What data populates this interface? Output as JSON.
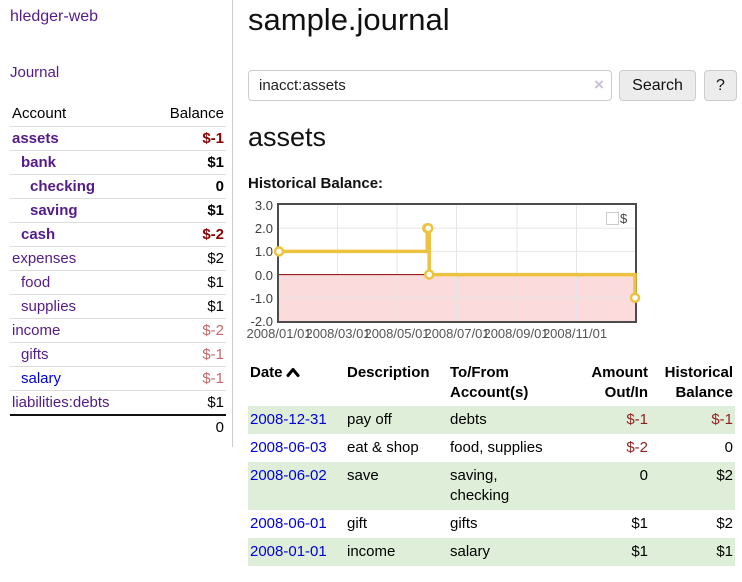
{
  "app": {
    "brand": "hledger-web",
    "nav_journal": "Journal"
  },
  "sidebar": {
    "header": {
      "account": "Account",
      "balance": "Balance"
    },
    "accounts": [
      {
        "name": "assets",
        "balance": "$-1"
      },
      {
        "name": "bank",
        "balance": "$1"
      },
      {
        "name": "checking",
        "balance": "0"
      },
      {
        "name": "saving",
        "balance": "$1"
      },
      {
        "name": "cash",
        "balance": "$-2"
      },
      {
        "name": "expenses",
        "balance": "$2"
      },
      {
        "name": "food",
        "balance": "$1"
      },
      {
        "name": "supplies",
        "balance": "$1"
      },
      {
        "name": "income",
        "balance": "$-2"
      },
      {
        "name": "gifts",
        "balance": "$-1"
      },
      {
        "name": "salary",
        "balance": "$-1"
      },
      {
        "name": "liabilities:debts",
        "balance": "$1"
      }
    ],
    "total": "0"
  },
  "header": {
    "title": "sample.journal"
  },
  "search": {
    "value": "inacct:assets",
    "clear_icon": "×",
    "search_button": "Search",
    "help_button": "?"
  },
  "account_page": {
    "heading": "assets",
    "chart_label": "Historical Balance:"
  },
  "chart_data": {
    "type": "line",
    "style": "steps",
    "title": "Historical Balance:",
    "ylim": [
      -2,
      3
    ],
    "y_ticks": [
      3,
      2,
      1,
      0,
      -1,
      -2
    ],
    "y_tick_labels": [
      "3.0",
      "2.0",
      "1.0",
      "0.0",
      "-1.0",
      "-2.0"
    ],
    "x_range": [
      "2008-01-01",
      "2008-12-31"
    ],
    "x_tick_dates": [
      "2008-01-01",
      "2008-03-01",
      "2008-05-01",
      "2008-07-01",
      "2008-09-01",
      "2008-11-01"
    ],
    "x_tick_labels": [
      "2008/01/01",
      "2008/03/01",
      "2008/05/01",
      "2008/07/01",
      "2008/09/01",
      "2008/11/01"
    ],
    "legend": {
      "label": "$",
      "position": "top-right"
    },
    "grid": true,
    "series": [
      {
        "name": "$",
        "color": "#edc240",
        "points": [
          [
            "2008-01-01",
            1
          ],
          [
            "2008-06-01",
            2
          ],
          [
            "2008-06-02",
            2
          ],
          [
            "2008-06-03",
            0
          ],
          [
            "2008-12-31",
            -1
          ]
        ]
      }
    ],
    "negative_region": {
      "fill": "#fbdbdb",
      "zero_line_color": "#8b0000"
    }
  },
  "register": {
    "columns": {
      "date": "Date",
      "description": "Description",
      "accounts_1": "To/From",
      "accounts_2": "Account(s)",
      "amount_1": "Amount",
      "amount_2": "Out/In",
      "balance_1": "Historical",
      "balance_2": "Balance"
    },
    "rows": [
      {
        "date": "2008-12-31",
        "description": "pay off",
        "accounts": "debts",
        "amount": "$-1",
        "balance": "$-1"
      },
      {
        "date": "2008-06-03",
        "description": "eat & shop",
        "accounts": "food, supplies",
        "amount": "$-2",
        "balance": "0"
      },
      {
        "date": "2008-06-02",
        "description": "save",
        "accounts": "saving,\nchecking",
        "amount": "0",
        "balance": "$2"
      },
      {
        "date": "2008-06-01",
        "description": "gift",
        "accounts": "gifts",
        "amount": "$1",
        "balance": "$2"
      },
      {
        "date": "2008-01-01",
        "description": "income",
        "accounts": "salary",
        "amount": "$1",
        "balance": "$1"
      }
    ]
  }
}
